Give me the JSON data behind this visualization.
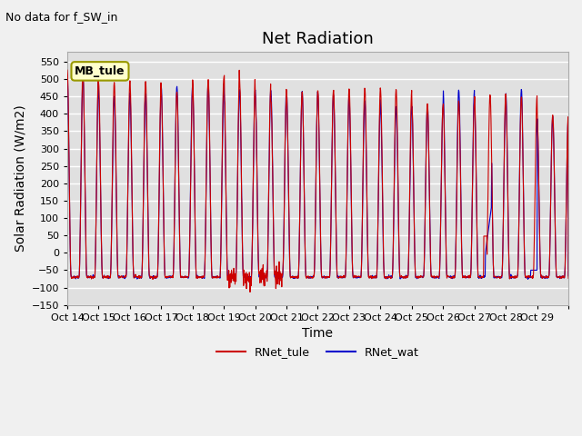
{
  "title": "Net Radiation",
  "subtitle": "No data for f_SW_in",
  "ylabel": "Solar Radiation (W/m2)",
  "xlabel": "Time",
  "ylim": [
    -150,
    580
  ],
  "yticks": [
    -150,
    -100,
    -50,
    0,
    50,
    100,
    150,
    200,
    250,
    300,
    350,
    400,
    450,
    500,
    550
  ],
  "xtick_labels": [
    "Oct 14",
    "Oct 15",
    "Oct 16",
    "Oct 17",
    "Oct 18",
    "Oct 19",
    "Oct 20",
    "Oct 21",
    "Oct 22",
    "Oct 23",
    "Oct 24",
    "Oct 25",
    "Oct 26",
    "Oct 27",
    "Oct 28",
    "Oct 29"
  ],
  "legend_entries": [
    "RNet_tule",
    "RNet_wat"
  ],
  "line_colors": [
    "#cc0000",
    "#0000cc"
  ],
  "box_label": "MB_tule",
  "box_facecolor": "#ffffcc",
  "box_edgecolor": "#999900",
  "background_color": "#e0e0e0",
  "fig_background": "#f0f0f0",
  "grid_color": "#ffffff",
  "title_fontsize": 13,
  "label_fontsize": 10,
  "tick_fontsize": 8,
  "n_days": 16,
  "pts_per_day": 96,
  "night_val": -70,
  "peaks_tule": [
    525,
    490,
    495,
    465,
    500,
    505,
    460,
    465,
    470,
    475,
    470,
    430,
    435,
    455,
    450,
    400
  ],
  "peaks_wat": [
    510,
    450,
    460,
    480,
    490,
    470,
    470,
    465,
    455,
    440,
    420,
    425,
    470,
    430,
    470,
    390
  ]
}
